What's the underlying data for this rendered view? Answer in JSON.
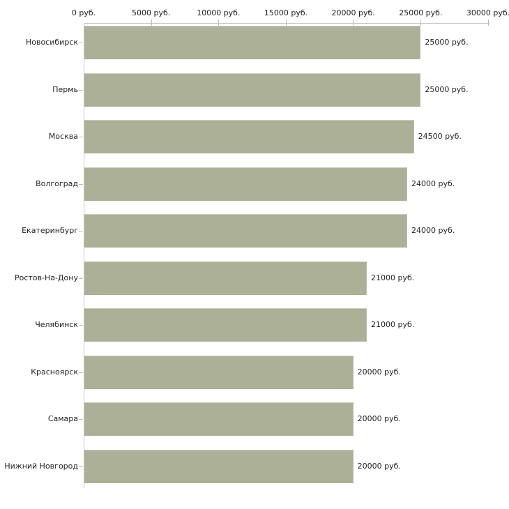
{
  "chart_data": {
    "type": "bar",
    "orientation": "horizontal",
    "title": "",
    "categories": [
      "Новосибирск",
      "Пермь",
      "Москва",
      "Волгоград",
      "Екатеринбург",
      "Ростов-На-Дону",
      "Челябинск",
      "Красноярск",
      "Самара",
      "Нижний Новгород"
    ],
    "values": [
      25000,
      25000,
      24500,
      24000,
      24000,
      21000,
      21000,
      20000,
      20000,
      20000
    ],
    "value_labels": [
      "25000 руб.",
      "25000 руб.",
      "24500 руб.",
      "24000 руб.",
      "24000 руб.",
      "21000 руб.",
      "21000 руб.",
      "20000 руб.",
      "20000 руб.",
      "20000 руб."
    ],
    "x_axis": {
      "position": "top",
      "range": [
        0,
        30000
      ],
      "ticks": [
        0,
        5000,
        10000,
        15000,
        20000,
        25000,
        30000
      ],
      "tick_labels": [
        "0 руб.",
        "5000 руб.",
        "10000 руб.",
        "15000 руб.",
        "20000 руб.",
        "25000 руб.",
        "30000 руб."
      ]
    },
    "unit": "руб.",
    "grid": false,
    "legend": false,
    "colors": {
      "bar_fill": "#abb096",
      "bar_edge_light": "#c9cdb5",
      "axis_line": "#c6c6c6",
      "tick_mark": "#bcc09a",
      "text": "#1f1f1f",
      "background": "#ffffff"
    }
  }
}
